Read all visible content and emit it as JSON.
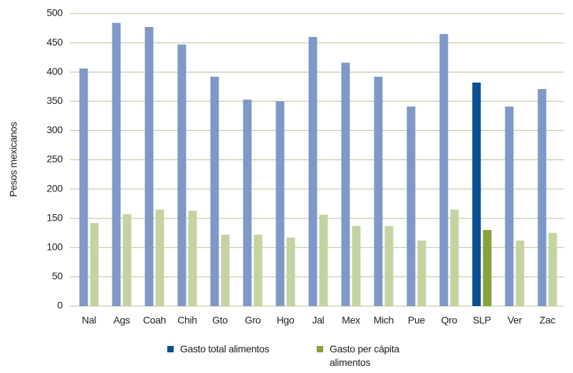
{
  "chart_data": {
    "type": "bar",
    "y_label": "Pesos mexicanos",
    "categories": [
      "Nal",
      "Ags",
      "Coah",
      "Chih",
      "Gto",
      "Gro",
      "Hgo",
      "Jal",
      "Mex",
      "Mich",
      "Pue",
      "Qro",
      "SLP",
      "Ver",
      "Zac"
    ],
    "series": [
      {
        "name": "Gasto total alimentos",
        "color": "#0b4f93",
        "colors": [
          "#7f98c8",
          "#7f98c8",
          "#7f98c8",
          "#7f98c8",
          "#7f98c8",
          "#7f98c8",
          "#7f98c8",
          "#7f98c8",
          "#7f98c8",
          "#7f98c8",
          "#7f98c8",
          "#7f98c8",
          "#0b4f93",
          "#7f98c8",
          "#7f98c8"
        ],
        "values": [
          406,
          484,
          477,
          447,
          392,
          353,
          350,
          460,
          416,
          392,
          341,
          465,
          382,
          341,
          371
        ]
      },
      {
        "name": "Gasto per cápita alimentos",
        "color": "#87a23c",
        "colors": [
          "#c5d3a0",
          "#c5d3a0",
          "#c5d3a0",
          "#c5d3a0",
          "#c5d3a0",
          "#c5d3a0",
          "#c5d3a0",
          "#c5d3a0",
          "#c5d3a0",
          "#c5d3a0",
          "#c5d3a0",
          "#c5d3a0",
          "#87a23c",
          "#c5d3a0",
          "#c5d3a0"
        ],
        "values": [
          142,
          157,
          165,
          163,
          122,
          122,
          117,
          156,
          137,
          137,
          112,
          165,
          130,
          112,
          125
        ]
      }
    ],
    "ylim": [
      0,
      500
    ],
    "yticks": [
      0,
      50,
      100,
      150,
      200,
      250,
      300,
      350,
      400,
      450,
      500
    ],
    "grid": true,
    "legend": "bottom"
  }
}
